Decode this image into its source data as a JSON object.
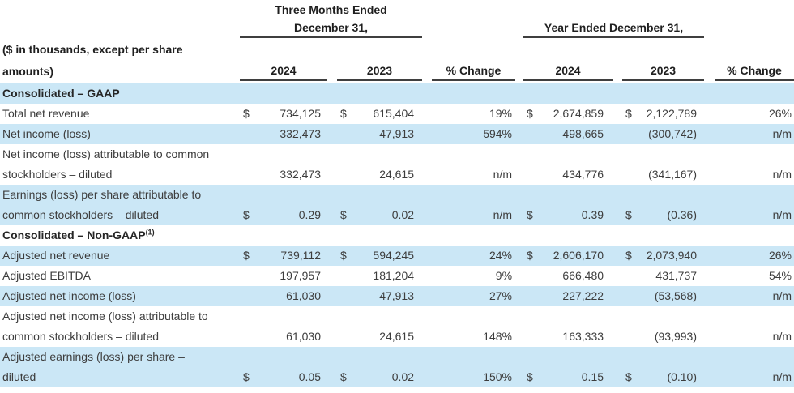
{
  "table": {
    "header": {
      "three_months_title": "Three Months Ended",
      "three_months_subtitle": "December 31,",
      "year_title": "Year Ended December 31,",
      "units_note_line1": "($ in thousands, except per share",
      "units_note_line2": "amounts)",
      "tm_col_2024": "2024",
      "tm_col_2023": "2023",
      "tm_col_pct": "% Change",
      "ye_col_2024": "2024",
      "ye_col_2023": "2023",
      "ye_col_pct": "% Change"
    },
    "colors": {
      "row_shade": "#cbe7f6",
      "text": "#3d3d3d",
      "heading_text": "#1f1f1f",
      "rule": "#3f3f3f"
    },
    "rows": [
      {
        "section": true,
        "shade": true,
        "label": "Consolidated – GAAP"
      },
      {
        "shade": false,
        "label": "Total net revenue",
        "cells": {
          "tm_d24": "$",
          "tm_v24": "734,125",
          "tm_d23": "$",
          "tm_v23": "615,404",
          "tm_pct": "19%",
          "ye_d24": "$",
          "ye_v24": "2,674,859",
          "ye_d23": "$",
          "ye_v23": "2,122,789",
          "ye_pct": "26%"
        }
      },
      {
        "shade": true,
        "label": "Net income (loss)",
        "cells": {
          "tm_v24": "332,473",
          "tm_v23": "47,913",
          "tm_pct": "594%",
          "ye_v24": "498,665",
          "ye_v23": "(300,742)",
          "ye_pct": "n/m"
        }
      },
      {
        "shade": false,
        "label": "Net income (loss) attributable to common"
      },
      {
        "shade": false,
        "label": "stockholders – diluted",
        "cells": {
          "tm_v24": "332,473",
          "tm_v23": "24,615",
          "tm_pct": "n/m",
          "ye_v24": "434,776",
          "ye_v23": "(341,167)",
          "ye_pct": "n/m"
        }
      },
      {
        "shade": true,
        "label": "Earnings (loss) per share attributable to"
      },
      {
        "shade": true,
        "label": "common stockholders – diluted",
        "cells": {
          "tm_d24": "$",
          "tm_v24": "0.29",
          "tm_d23": "$",
          "tm_v23": "0.02",
          "tm_pct": "n/m",
          "ye_d24": "$",
          "ye_v24": "0.39",
          "ye_d23": "$",
          "ye_v23": "(0.36)",
          "ye_pct": "n/m"
        }
      },
      {
        "section": true,
        "shade": false,
        "label": "Consolidated – Non-GAAP",
        "sup": "(1)"
      },
      {
        "shade": true,
        "label": "Adjusted net revenue",
        "cells": {
          "tm_d24": "$",
          "tm_v24": "739,112",
          "tm_d23": "$",
          "tm_v23": "594,245",
          "tm_pct": "24%",
          "ye_d24": "$",
          "ye_v24": "2,606,170",
          "ye_d23": "$",
          "ye_v23": "2,073,940",
          "ye_pct": "26%"
        }
      },
      {
        "shade": false,
        "label": "Adjusted EBITDA",
        "cells": {
          "tm_v24": "197,957",
          "tm_v23": "181,204",
          "tm_pct": "9%",
          "ye_v24": "666,480",
          "ye_v23": "431,737",
          "ye_pct": "54%"
        }
      },
      {
        "shade": true,
        "label": "Adjusted net income (loss)",
        "cells": {
          "tm_v24": "61,030",
          "tm_v23": "47,913",
          "tm_pct": "27%",
          "ye_v24": "227,222",
          "ye_v23": "(53,568)",
          "ye_pct": "n/m"
        }
      },
      {
        "shade": false,
        "label": "Adjusted net income (loss) attributable to"
      },
      {
        "shade": false,
        "label": "common stockholders – diluted",
        "cells": {
          "tm_v24": "61,030",
          "tm_v23": "24,615",
          "tm_pct": "148%",
          "ye_v24": "163,333",
          "ye_v23": "(93,993)",
          "ye_pct": "n/m"
        }
      },
      {
        "shade": true,
        "label": "Adjusted earnings (loss) per share –"
      },
      {
        "shade": true,
        "label": "diluted",
        "cells": {
          "tm_d24": "$",
          "tm_v24": "0.05",
          "tm_d23": "$",
          "tm_v23": "0.02",
          "tm_pct": "150%",
          "ye_d24": "$",
          "ye_v24": "0.15",
          "ye_d23": "$",
          "ye_v23": "(0.10)",
          "ye_pct": "n/m"
        }
      }
    ]
  }
}
